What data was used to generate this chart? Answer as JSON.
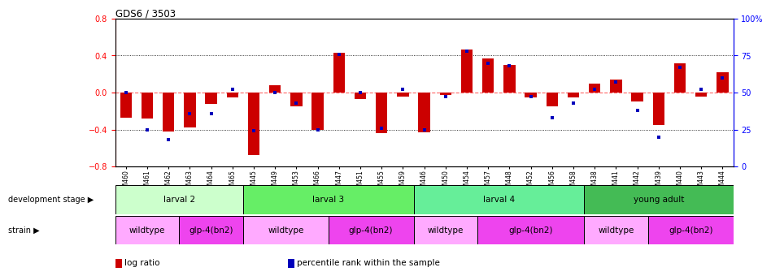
{
  "title": "GDS6 / 3503",
  "samples": [
    "GSM460",
    "GSM461",
    "GSM462",
    "GSM463",
    "GSM464",
    "GSM465",
    "GSM445",
    "GSM449",
    "GSM453",
    "GSM466",
    "GSM447",
    "GSM451",
    "GSM455",
    "GSM459",
    "GSM446",
    "GSM450",
    "GSM454",
    "GSM457",
    "GSM448",
    "GSM452",
    "GSM456",
    "GSM458",
    "GSM438",
    "GSM441",
    "GSM442",
    "GSM439",
    "GSM440",
    "GSM443",
    "GSM444"
  ],
  "log_ratio": [
    -0.27,
    -0.28,
    -0.42,
    -0.38,
    -0.12,
    -0.05,
    -0.68,
    0.08,
    -0.15,
    -0.4,
    0.43,
    -0.07,
    -0.44,
    -0.04,
    -0.43,
    -0.03,
    0.47,
    0.37,
    0.3,
    -0.05,
    -0.15,
    -0.05,
    0.1,
    0.14,
    -0.1,
    -0.35,
    0.32,
    -0.04,
    0.22
  ],
  "percentile": [
    50,
    25,
    18,
    36,
    36,
    52,
    24,
    50,
    43,
    25,
    76,
    50,
    26,
    52,
    25,
    47,
    78,
    70,
    68,
    47,
    33,
    43,
    52,
    57,
    38,
    20,
    67,
    52,
    60
  ],
  "bar_color": "#cc0000",
  "dot_color": "#0000bb",
  "zero_line_color": "#ff6666",
  "ylim": [
    -0.8,
    0.8
  ],
  "y2lim": [
    0,
    100
  ],
  "yticks": [
    -0.8,
    -0.4,
    0.0,
    0.4,
    0.8
  ],
  "y2ticks": [
    0,
    25,
    50,
    75,
    100
  ],
  "y2ticklabels": [
    "0",
    "25",
    "50",
    "75",
    "100%"
  ],
  "dotted_lines": [
    -0.4,
    0.4
  ],
  "groups": [
    {
      "label": "larval 2",
      "start": 0,
      "end": 6,
      "color": "#ccffcc"
    },
    {
      "label": "larval 3",
      "start": 6,
      "end": 14,
      "color": "#66ee66"
    },
    {
      "label": "larval 4",
      "start": 14,
      "end": 22,
      "color": "#66ee99"
    },
    {
      "label": "young adult",
      "start": 22,
      "end": 29,
      "color": "#44bb55"
    }
  ],
  "strains": [
    {
      "label": "wildtype",
      "start": 0,
      "end": 3,
      "color": "#ffaaff"
    },
    {
      "label": "glp-4(bn2)",
      "start": 3,
      "end": 6,
      "color": "#ee44ee"
    },
    {
      "label": "wildtype",
      "start": 6,
      "end": 10,
      "color": "#ffaaff"
    },
    {
      "label": "glp-4(bn2)",
      "start": 10,
      "end": 14,
      "color": "#ee44ee"
    },
    {
      "label": "wildtype",
      "start": 14,
      "end": 17,
      "color": "#ffaaff"
    },
    {
      "label": "glp-4(bn2)",
      "start": 17,
      "end": 22,
      "color": "#ee44ee"
    },
    {
      "label": "wildtype",
      "start": 22,
      "end": 25,
      "color": "#ffaaff"
    },
    {
      "label": "glp-4(bn2)",
      "start": 25,
      "end": 29,
      "color": "#ee44ee"
    }
  ],
  "bar_width": 0.55
}
